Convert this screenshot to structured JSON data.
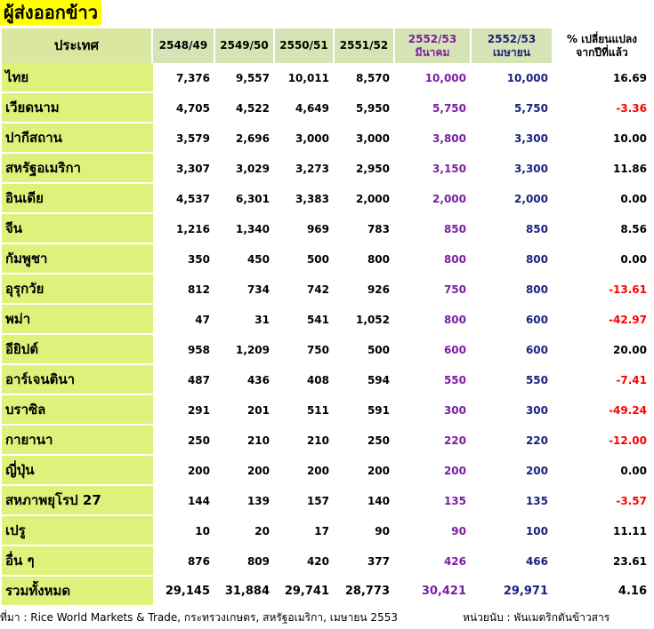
{
  "title": "ผู้ส่งออกข้าว",
  "colors": {
    "title_bg": "#ffff00",
    "country_bg": "#ddf27a",
    "march": "#7b1fa2",
    "april": "#1a237e",
    "negative": "#ff0000"
  },
  "header": {
    "country": "ประเทศ",
    "y1": "2548/49",
    "y2": "2549/50",
    "y3": "2550/51",
    "y4": "2551/52",
    "y5_line1": "2552/53",
    "y5_line2": "มีนาคม",
    "y6_line1": "2552/53",
    "y6_line2": "เมษายน",
    "pct_line1": "% เปลี่ยนแปลง",
    "pct_line2": "จากปีที่แล้ว"
  },
  "rows": [
    {
      "country": "ไทย",
      "y1": "7,376",
      "y2": "9,557",
      "y3": "10,011",
      "y4": "8,570",
      "mar": "10,000",
      "apr": "10,000",
      "pct": "16.69"
    },
    {
      "country": "เวียดนาม",
      "y1": "4,705",
      "y2": "4,522",
      "y3": "4,649",
      "y4": "5,950",
      "mar": "5,750",
      "apr": "5,750",
      "pct": "-3.36"
    },
    {
      "country": "ปากีสถาน",
      "y1": "3,579",
      "y2": "2,696",
      "y3": "3,000",
      "y4": "3,000",
      "mar": "3,800",
      "apr": "3,300",
      "pct": "10.00"
    },
    {
      "country": "สหรัฐอเมริกา",
      "y1": "3,307",
      "y2": "3,029",
      "y3": "3,273",
      "y4": "2,950",
      "mar": "3,150",
      "apr": "3,300",
      "pct": "11.86"
    },
    {
      "country": "อินเดีย",
      "y1": "4,537",
      "y2": "6,301",
      "y3": "3,383",
      "y4": "2,000",
      "mar": "2,000",
      "apr": "2,000",
      "pct": "0.00"
    },
    {
      "country": "จีน",
      "y1": "1,216",
      "y2": "1,340",
      "y3": "969",
      "y4": "783",
      "mar": "850",
      "apr": "850",
      "pct": "8.56"
    },
    {
      "country": "กัมพูชา",
      "y1": "350",
      "y2": "450",
      "y3": "500",
      "y4": "800",
      "mar": "800",
      "apr": "800",
      "pct": "0.00"
    },
    {
      "country": "อุรุกวัย",
      "y1": "812",
      "y2": "734",
      "y3": "742",
      "y4": "926",
      "mar": "750",
      "apr": "800",
      "pct": "-13.61"
    },
    {
      "country": "พม่า",
      "y1": "47",
      "y2": "31",
      "y3": "541",
      "y4": "1,052",
      "mar": "800",
      "apr": "600",
      "pct": "-42.97"
    },
    {
      "country": "อียิปต์",
      "y1": "958",
      "y2": "1,209",
      "y3": "750",
      "y4": "500",
      "mar": "600",
      "apr": "600",
      "pct": "20.00"
    },
    {
      "country": "อาร์เจนตินา",
      "y1": "487",
      "y2": "436",
      "y3": "408",
      "y4": "594",
      "mar": "550",
      "apr": "550",
      "pct": "-7.41"
    },
    {
      "country": "บราซิล",
      "y1": "291",
      "y2": "201",
      "y3": "511",
      "y4": "591",
      "mar": "300",
      "apr": "300",
      "pct": "-49.24"
    },
    {
      "country": "กายานา",
      "y1": "250",
      "y2": "210",
      "y3": "210",
      "y4": "250",
      "mar": "220",
      "apr": "220",
      "pct": "-12.00"
    },
    {
      "country": "ญี่ปุ่น",
      "y1": "200",
      "y2": "200",
      "y3": "200",
      "y4": "200",
      "mar": "200",
      "apr": "200",
      "pct": "0.00"
    },
    {
      "country": "สหภาพยุโรป 27",
      "y1": "144",
      "y2": "139",
      "y3": "157",
      "y4": "140",
      "mar": "135",
      "apr": "135",
      "pct": "-3.57"
    },
    {
      "country": "เปรู",
      "y1": "10",
      "y2": "20",
      "y3": "17",
      "y4": "90",
      "mar": "90",
      "apr": "100",
      "pct": "11.11"
    },
    {
      "country": "อื่น ๆ",
      "y1": "876",
      "y2": "809",
      "y3": "420",
      "y4": "377",
      "mar": "426",
      "apr": "466",
      "pct": "23.61"
    }
  ],
  "total": {
    "country": "รวมทั้งหมด",
    "y1": "29,145",
    "y2": "31,884",
    "y3": "29,741",
    "y4": "28,773",
    "mar": "30,421",
    "apr": "29,971",
    "pct": "4.16"
  },
  "footer": {
    "source": "ที่มา : Rice World Markets & Trade, กระทรวงเกษตร, สหรัฐอเมริกา, เมษายน 2553",
    "unit": "หน่วยนับ : พันเมตริกตันข้าวสาร"
  }
}
